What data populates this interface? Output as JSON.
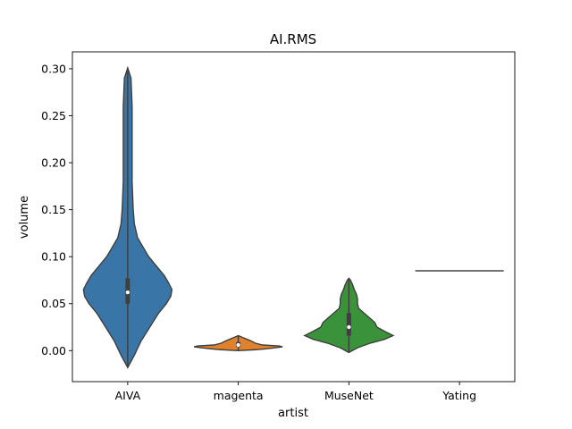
{
  "chart_data": {
    "type": "violin",
    "title": "AI.RMS",
    "xlabel": "artist",
    "ylabel": "volume",
    "ylim": [
      -0.033,
      0.318
    ],
    "yticks": [
      0.0,
      0.05,
      0.1,
      0.15,
      0.2,
      0.25,
      0.3
    ],
    "ytick_labels": [
      "0.00",
      "0.05",
      "0.10",
      "0.15",
      "0.20",
      "0.25",
      "0.30"
    ],
    "grid": false,
    "categories": [
      "AIVA",
      "magenta",
      "MuseNet",
      "Yating"
    ],
    "series": [
      {
        "category": "AIVA",
        "color": "#3a75a7",
        "range": [
          -0.018,
          0.301
        ],
        "q1": 0.05,
        "median": 0.062,
        "q3": 0.077,
        "density": [
          [
            -0.018,
            0.0
          ],
          [
            -0.005,
            0.03
          ],
          [
            0.01,
            0.06
          ],
          [
            0.025,
            0.1
          ],
          [
            0.04,
            0.14
          ],
          [
            0.05,
            0.175
          ],
          [
            0.058,
            0.195
          ],
          [
            0.065,
            0.2
          ],
          [
            0.072,
            0.185
          ],
          [
            0.08,
            0.165
          ],
          [
            0.09,
            0.13
          ],
          [
            0.1,
            0.095
          ],
          [
            0.11,
            0.07
          ],
          [
            0.12,
            0.045
          ],
          [
            0.135,
            0.03
          ],
          [
            0.15,
            0.025
          ],
          [
            0.18,
            0.02
          ],
          [
            0.22,
            0.02
          ],
          [
            0.26,
            0.02
          ],
          [
            0.29,
            0.015
          ],
          [
            0.301,
            0.0
          ]
        ]
      },
      {
        "category": "magenta",
        "color": "#e1812c",
        "range": [
          0.0,
          0.016
        ],
        "q1": 0.004,
        "median": 0.006,
        "q3": 0.009,
        "density": [
          [
            0.0,
            0.0
          ],
          [
            0.001,
            0.4
          ],
          [
            0.002,
            0.65
          ],
          [
            0.003,
            0.82
          ],
          [
            0.004,
            1.0
          ],
          [
            0.005,
            0.92
          ],
          [
            0.006,
            0.55
          ],
          [
            0.008,
            0.38
          ],
          [
            0.01,
            0.3
          ],
          [
            0.012,
            0.2
          ],
          [
            0.014,
            0.1
          ],
          [
            0.016,
            0.0
          ]
        ]
      },
      {
        "category": "MuseNet",
        "color": "#3a923a",
        "range": [
          -0.002,
          0.077
        ],
        "q1": 0.016,
        "median": 0.025,
        "q3": 0.04,
        "density": [
          [
            -0.002,
            0.0
          ],
          [
            0.003,
            0.08
          ],
          [
            0.008,
            0.2
          ],
          [
            0.012,
            0.33
          ],
          [
            0.016,
            0.41
          ],
          [
            0.02,
            0.34
          ],
          [
            0.025,
            0.26
          ],
          [
            0.03,
            0.24
          ],
          [
            0.035,
            0.19
          ],
          [
            0.04,
            0.14
          ],
          [
            0.045,
            0.09
          ],
          [
            0.05,
            0.08
          ],
          [
            0.055,
            0.08
          ],
          [
            0.06,
            0.07
          ],
          [
            0.065,
            0.05
          ],
          [
            0.07,
            0.035
          ],
          [
            0.075,
            0.015
          ],
          [
            0.077,
            0.0
          ]
        ]
      },
      {
        "category": "Yating",
        "color": "#444444",
        "range": [
          0.085,
          0.085
        ],
        "median": 0.085
      }
    ]
  }
}
